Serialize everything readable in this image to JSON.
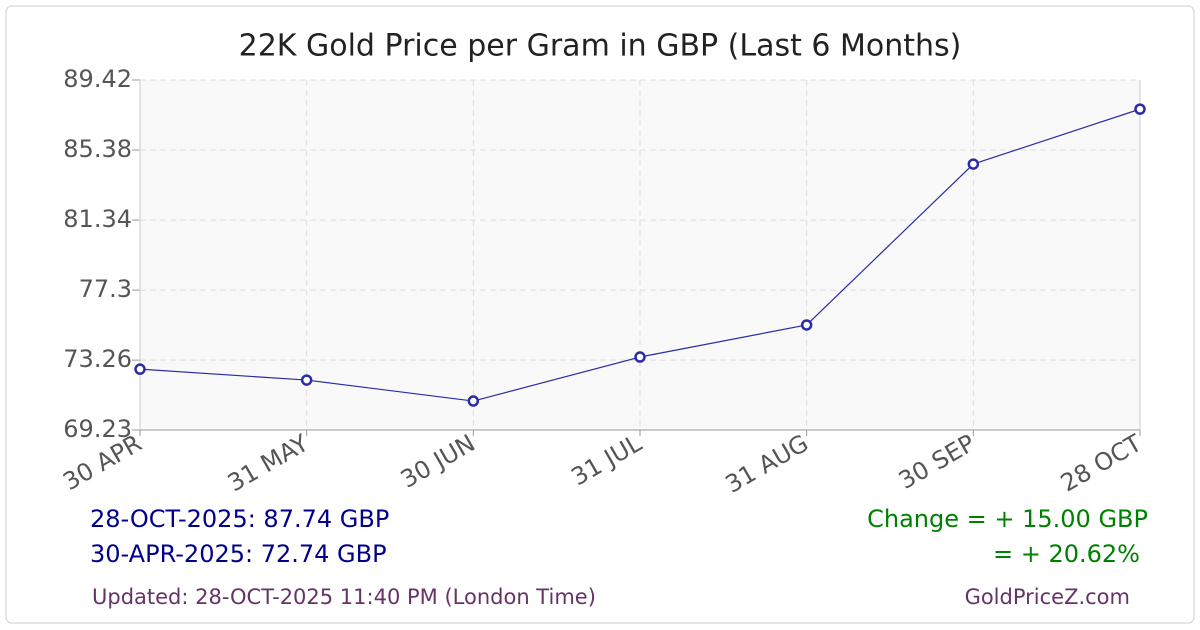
{
  "chart_data": {
    "type": "line",
    "title": "22K Gold Price per Gram in GBP (Last 6 Months)",
    "categories": [
      "30 APR",
      "31 MAY",
      "30 JUN",
      "31 JUL",
      "31 AUG",
      "30 SEP",
      "28 OCT"
    ],
    "series": [
      {
        "name": "22K Gold GBP",
        "color": "#2b2ba8",
        "values": [
          72.74,
          72.11,
          70.9,
          73.44,
          75.29,
          84.57,
          87.74
        ]
      }
    ],
    "ylim": [
      69.23,
      89.42
    ],
    "yticks": [
      69.23,
      73.26,
      77.3,
      81.34,
      85.38,
      89.42
    ],
    "grid": true,
    "legend": false,
    "summary": {
      "latest": "28-OCT-2025: 87.74 GBP",
      "earliest": "30-APR-2025: 72.74 GBP",
      "change_amount": "Change = + 15.00 GBP",
      "change_percent": "= + 20.62%",
      "updated": "Updated: 28-OCT-2025 11:40 PM (London Time)",
      "source": "GoldPriceZ.com"
    }
  }
}
